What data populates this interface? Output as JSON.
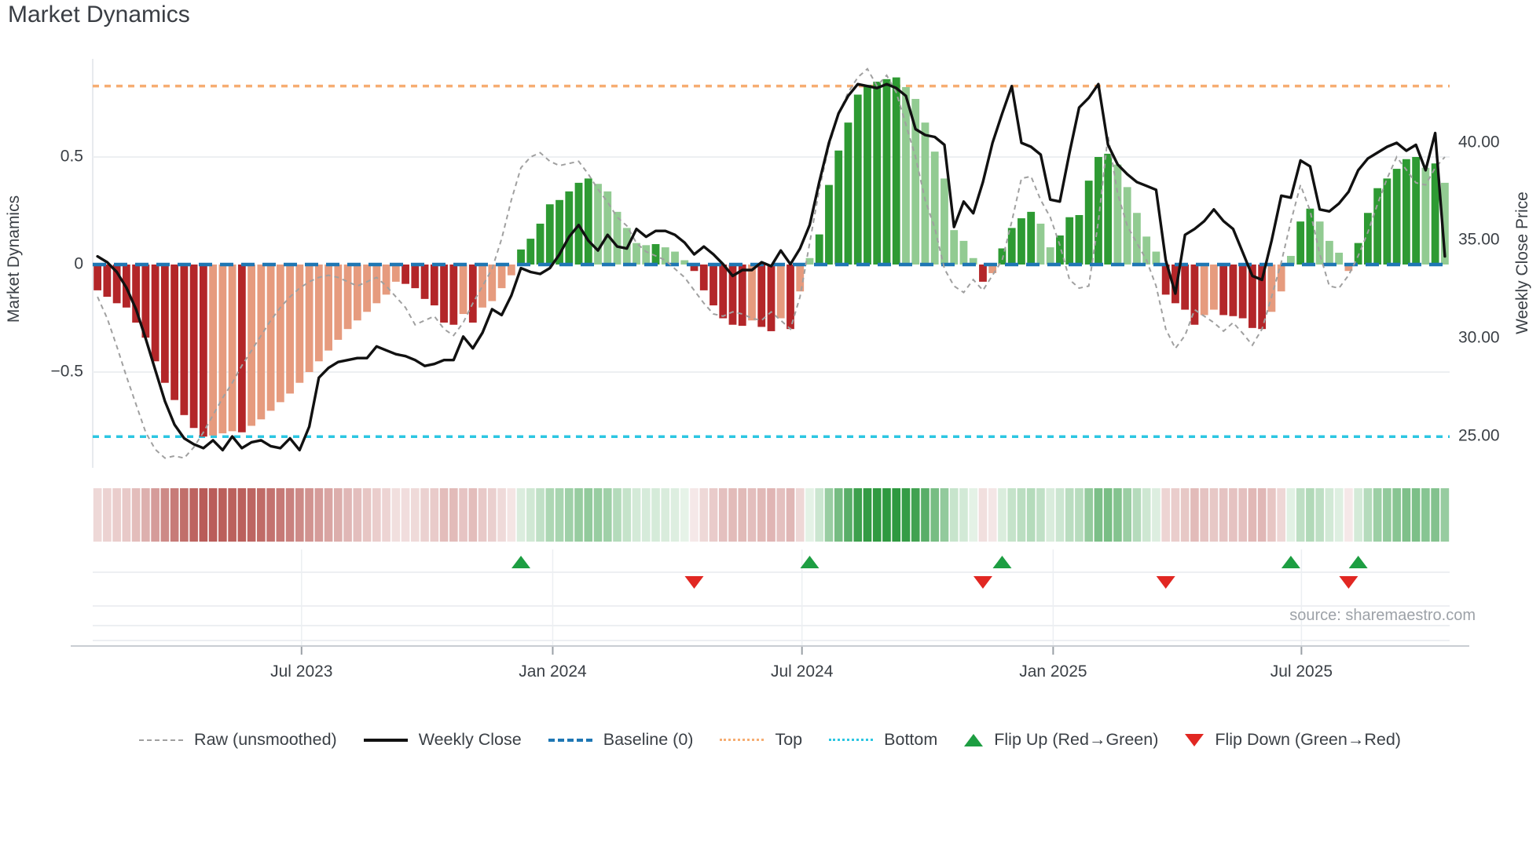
{
  "title": "Market Dynamics",
  "source": "source: sharemaestro.com",
  "y_axis_left": {
    "label": "Market Dynamics",
    "ticks": [
      "0.5",
      "0",
      "−0.5"
    ]
  },
  "y_axis_right": {
    "label": "Weekly Close Price",
    "ticks": [
      "40.00",
      "35.00",
      "30.00",
      "25.00"
    ]
  },
  "legend": {
    "raw": "Raw (unsmoothed)",
    "close": "Weekly Close",
    "baseline": "Baseline (0)",
    "top": "Top",
    "bottom": "Bottom",
    "flip_up": "Flip Up (Red→Green)",
    "flip_down": "Flip Down (Green→Red)"
  },
  "colors": {
    "bar_dark_red": "#b32629",
    "bar_light_red": "#e69b7e",
    "bar_dark_green": "#2e9a33",
    "bar_light_green": "#92cb92",
    "baseline_blue": "#1f77b4",
    "top_orange": "#f6ad72",
    "bottom_cyan": "#2cc6e2",
    "raw_gray": "#a0a0a0",
    "price_black": "#111111",
    "flip_up_green": "#1d9e42",
    "flip_down_red": "#e12722",
    "strip_red": "#b5524e",
    "strip_green": "#2e9940",
    "grid": "#edeff2",
    "spine": "#dfe3e8"
  },
  "chart_data": {
    "type": "composite",
    "subplots": [
      "indicator bars + raw line + weekly close price line",
      "momentum heatmap strip",
      "flip marker rows"
    ],
    "x_unit": "weeks",
    "n_points": 141,
    "x_tick_labels": [
      "Jul 2023",
      "Jan 2024",
      "Jul 2024",
      "Jan 2025",
      "Jul 2025"
    ],
    "x_tick_weeks": [
      21.7,
      47.8,
      73.7,
      99.8,
      125.6
    ],
    "indicator_axis": {
      "label": "Market Dynamics",
      "ticks": [
        0.5,
        0,
        -0.5
      ],
      "ylim": [
        -0.95,
        0.96
      ],
      "baseline": 0,
      "top_line": 0.83,
      "bottom_line": -0.8
    },
    "price_axis": {
      "label": "Weekly Close Price",
      "ticks": [
        40,
        35,
        30,
        25
      ],
      "tick_labels": [
        "40.00",
        "35.00",
        "30.00",
        "25.00"
      ],
      "ylim": [
        24.0,
        43.3
      ]
    },
    "legend_position": "bottom",
    "grid": "light horizontal at ±0.5; vertical date gridlines in marker subplot",
    "series": [
      {
        "name": "Indicator",
        "type": "bar",
        "color_rule": "red if v<0 else green; dark shade when |v| rising, light when falling",
        "values": [
          -0.12,
          -0.15,
          -0.18,
          -0.2,
          -0.27,
          -0.34,
          -0.45,
          -0.55,
          -0.63,
          -0.7,
          -0.76,
          -0.8,
          -0.795,
          -0.785,
          -0.775,
          -0.78,
          -0.75,
          -0.72,
          -0.68,
          -0.64,
          -0.6,
          -0.55,
          -0.5,
          -0.45,
          -0.4,
          -0.35,
          -0.3,
          -0.26,
          -0.22,
          -0.18,
          -0.14,
          -0.08,
          -0.09,
          -0.11,
          -0.16,
          -0.19,
          -0.27,
          -0.28,
          -0.23,
          -0.27,
          -0.2,
          -0.17,
          -0.11,
          -0.05,
          0.07,
          0.12,
          0.19,
          0.28,
          0.3,
          0.34,
          0.38,
          0.4,
          0.375,
          0.34,
          0.245,
          0.17,
          0.1,
          0.09,
          0.095,
          0.08,
          0.06,
          0.02,
          -0.03,
          -0.12,
          -0.19,
          -0.25,
          -0.28,
          -0.285,
          -0.26,
          -0.29,
          -0.31,
          -0.25,
          -0.3,
          -0.125,
          0.03,
          0.14,
          0.37,
          0.53,
          0.66,
          0.79,
          0.835,
          0.85,
          0.862,
          0.87,
          0.825,
          0.77,
          0.66,
          0.525,
          0.4,
          0.16,
          0.11,
          0.03,
          -0.08,
          -0.04,
          0.075,
          0.17,
          0.215,
          0.245,
          0.19,
          0.08,
          0.135,
          0.22,
          0.23,
          0.39,
          0.5,
          0.515,
          0.465,
          0.36,
          0.24,
          0.13,
          0.06,
          -0.14,
          -0.18,
          -0.21,
          -0.28,
          -0.235,
          -0.21,
          -0.235,
          -0.24,
          -0.25,
          -0.295,
          -0.3,
          -0.22,
          -0.125,
          0.04,
          0.2,
          0.26,
          0.2,
          0.11,
          0.055,
          -0.03,
          0.1,
          0.24,
          0.355,
          0.4,
          0.445,
          0.49,
          0.5,
          0.45,
          0.47,
          0.38
        ]
      },
      {
        "name": "Raw (unsmoothed)",
        "type": "line",
        "style": "dashed",
        "axis": "indicator",
        "values": [
          -0.15,
          -0.25,
          -0.38,
          -0.52,
          -0.65,
          -0.78,
          -0.86,
          -0.9,
          -0.89,
          -0.9,
          -0.85,
          -0.78,
          -0.7,
          -0.62,
          -0.55,
          -0.47,
          -0.4,
          -0.33,
          -0.26,
          -0.2,
          -0.15,
          -0.11,
          -0.08,
          -0.06,
          -0.05,
          -0.06,
          -0.08,
          -0.1,
          -0.08,
          -0.06,
          -0.1,
          -0.15,
          -0.2,
          -0.28,
          -0.26,
          -0.24,
          -0.3,
          -0.33,
          -0.27,
          -0.18,
          -0.1,
          -0.02,
          0.12,
          0.3,
          0.45,
          0.5,
          0.52,
          0.48,
          0.46,
          0.47,
          0.48,
          0.42,
          0.35,
          0.29,
          0.22,
          0.18,
          0.1,
          0.06,
          0.04,
          0.02,
          -0.02,
          -0.06,
          -0.12,
          -0.18,
          -0.23,
          -0.24,
          -0.22,
          -0.23,
          -0.25,
          -0.26,
          -0.22,
          -0.26,
          -0.3,
          -0.15,
          0.1,
          0.35,
          0.55,
          0.7,
          0.8,
          0.87,
          0.91,
          0.83,
          0.88,
          0.8,
          0.65,
          0.5,
          0.3,
          0.17,
          -0.02,
          -0.1,
          -0.13,
          -0.07,
          -0.12,
          -0.05,
          0.02,
          0.2,
          0.4,
          0.41,
          0.3,
          0.22,
          0.09,
          -0.07,
          -0.11,
          -0.1,
          0.2,
          0.6,
          0.33,
          0.18,
          0.1,
          0.02,
          -0.1,
          -0.3,
          -0.39,
          -0.33,
          -0.21,
          -0.24,
          -0.27,
          -0.31,
          -0.27,
          -0.32,
          -0.375,
          -0.3,
          -0.15,
          0.01,
          0.2,
          0.37,
          0.25,
          0.05,
          -0.1,
          -0.11,
          -0.05,
          0.04,
          0.15,
          0.28,
          0.4,
          0.5,
          0.44,
          0.38,
          0.37,
          0.45,
          0.5
        ]
      },
      {
        "name": "Weekly Close",
        "type": "line",
        "style": "solid",
        "axis": "price",
        "values": [
          34.2,
          33.9,
          33.4,
          32.6,
          31.5,
          30.0,
          28.4,
          26.8,
          25.6,
          24.9,
          24.6,
          24.4,
          24.8,
          24.3,
          25.0,
          24.4,
          24.7,
          24.8,
          24.5,
          24.4,
          24.9,
          24.3,
          25.5,
          28.0,
          28.5,
          28.8,
          28.9,
          29.0,
          29.0,
          29.6,
          29.4,
          29.2,
          29.1,
          28.9,
          28.6,
          28.7,
          28.9,
          28.9,
          30.1,
          29.5,
          30.3,
          31.5,
          31.2,
          32.2,
          33.6,
          33.4,
          33.3,
          33.6,
          34.3,
          35.2,
          35.8,
          35.0,
          34.5,
          35.3,
          34.7,
          34.6,
          35.6,
          35.2,
          35.5,
          35.5,
          35.3,
          34.9,
          34.3,
          34.7,
          34.3,
          33.8,
          33.2,
          33.5,
          33.5,
          33.9,
          33.7,
          34.5,
          33.8,
          34.6,
          35.8,
          38.0,
          40.0,
          41.5,
          42.4,
          43.0,
          42.9,
          42.8,
          43.0,
          42.8,
          42.4,
          40.7,
          40.4,
          40.3,
          39.9,
          35.7,
          37.0,
          36.4,
          38.0,
          40.0,
          41.5,
          42.9,
          40.0,
          39.8,
          39.4,
          37.1,
          37.0,
          39.5,
          41.8,
          42.3,
          43.0,
          39.9,
          38.9,
          38.4,
          38.0,
          37.8,
          37.6,
          34.0,
          32.3,
          35.3,
          35.6,
          36.0,
          36.6,
          36.0,
          35.6,
          34.4,
          33.2,
          33.0,
          35.0,
          37.3,
          37.2,
          39.1,
          38.8,
          36.6,
          36.5,
          36.9,
          37.5,
          38.6,
          39.2,
          39.5,
          39.8,
          40.0,
          39.6,
          39.9,
          38.6,
          40.5,
          34.2
        ]
      }
    ],
    "heatmap_strip": {
      "description": "one cell per week, intensity = |indicator value|, red negative / green positive"
    },
    "flip_up_weeks": [
      44,
      74,
      94,
      124,
      131
    ],
    "flip_down_weeks": [
      62,
      92,
      111,
      130
    ]
  }
}
